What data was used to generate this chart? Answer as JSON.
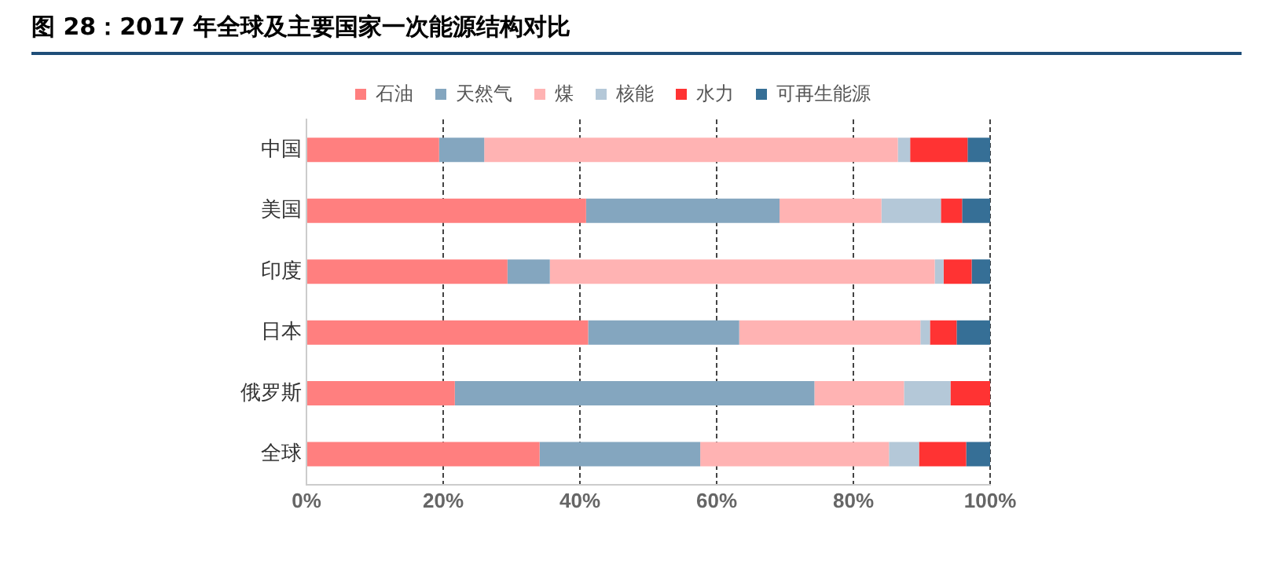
{
  "chart_data": {
    "type": "bar",
    "orientation": "horizontal",
    "stacked": true,
    "title": "图 28：2017 年全球及主要国家一次能源结构对比",
    "categories": [
      "中国",
      "美国",
      "印度",
      "日本",
      "俄罗斯",
      "全球"
    ],
    "series": [
      {
        "name": "石油",
        "color": "#ff7f7f",
        "values": [
          19.4,
          40.9,
          29.4,
          41.2,
          21.7,
          34.1
        ]
      },
      {
        "name": "天然气",
        "color": "#84a6bf",
        "values": [
          6.6,
          28.3,
          6.2,
          22.1,
          52.6,
          23.5
        ]
      },
      {
        "name": "煤",
        "color": "#ffb3b3",
        "values": [
          60.5,
          14.9,
          56.3,
          26.5,
          13.1,
          27.6
        ]
      },
      {
        "name": "核能",
        "color": "#b4c8d8",
        "values": [
          1.8,
          8.7,
          1.3,
          1.4,
          6.8,
          4.4
        ]
      },
      {
        "name": "水力",
        "color": "#ff3333",
        "values": [
          8.4,
          3.1,
          4.1,
          3.9,
          5.8,
          6.9
        ]
      },
      {
        "name": "可再生能源",
        "color": "#366f96",
        "values": [
          3.3,
          4.1,
          2.7,
          4.9,
          0,
          3.5
        ]
      }
    ],
    "xlim": [
      0,
      100
    ],
    "xticks": [
      {
        "value": 0,
        "label": "0%"
      },
      {
        "value": 20,
        "label": "20%"
      },
      {
        "value": 40,
        "label": "40%"
      },
      {
        "value": 60,
        "label": "60%"
      },
      {
        "value": 80,
        "label": "80%"
      },
      {
        "value": 100,
        "label": "100%"
      }
    ],
    "grid": "x",
    "legend": "top"
  }
}
